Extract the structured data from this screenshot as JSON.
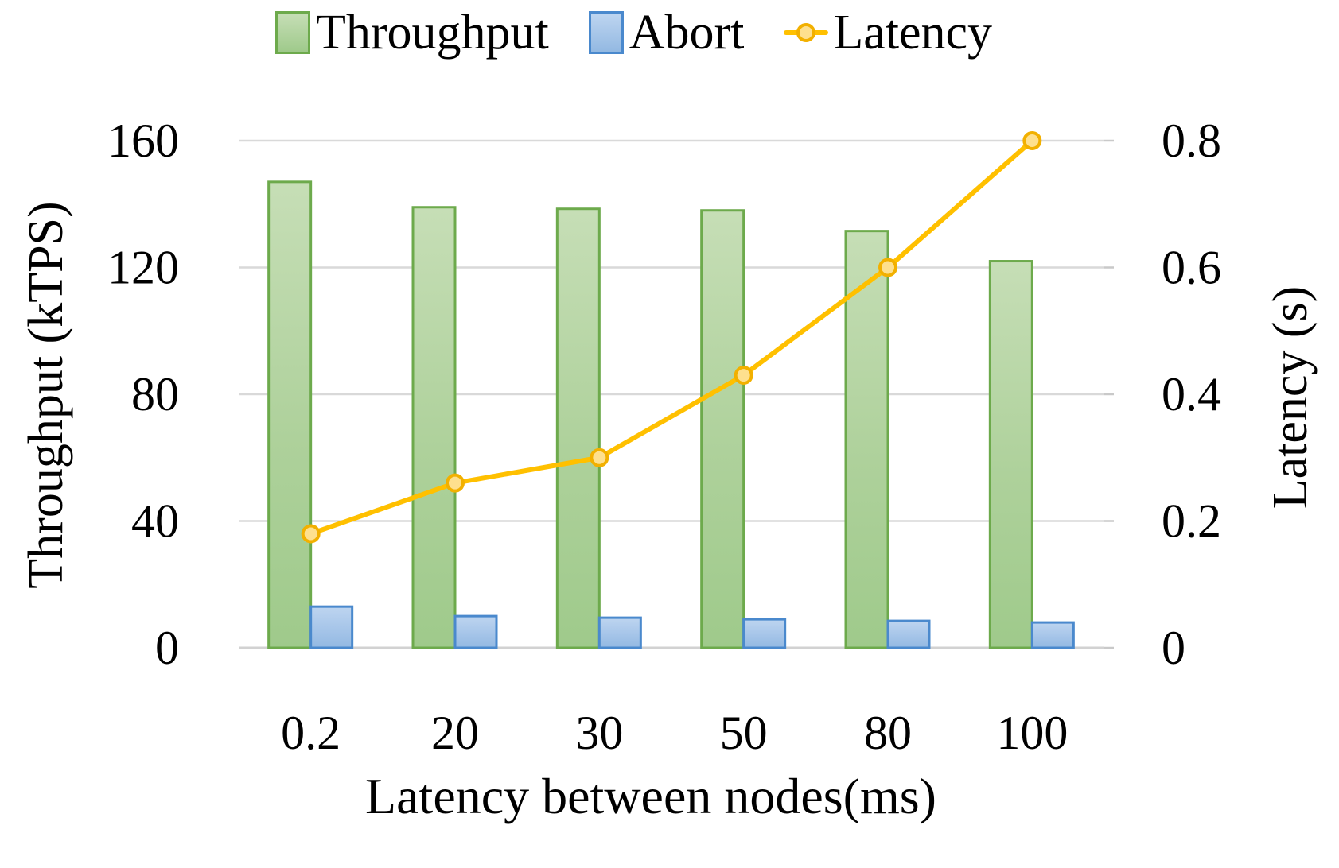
{
  "chart_data": {
    "type": "combo",
    "categories": [
      "0.2",
      "20",
      "30",
      "50",
      "80",
      "100"
    ],
    "series": [
      {
        "name": "Throughput",
        "type": "bar",
        "axis": "left",
        "values": [
          147,
          139,
          138.5,
          138,
          131.5,
          122
        ],
        "fill_top": "#c6deb6",
        "fill_mid": "#aed19b",
        "fill_bottom": "#9fca8b",
        "border": "#6daa4c"
      },
      {
        "name": "Abort",
        "type": "bar",
        "axis": "left",
        "values": [
          13,
          10,
          9.5,
          9,
          8.5,
          8
        ],
        "fill_top": "#bed5f0",
        "fill_mid": "#a6c5e9",
        "fill_bottom": "#93b9e2",
        "border": "#4a89cd"
      },
      {
        "name": "Latency",
        "type": "line",
        "axis": "right",
        "values": [
          0.18,
          0.26,
          0.3,
          0.43,
          0.6,
          0.8
        ],
        "color": "#ffc000",
        "marker_fill": "#fee08e",
        "marker_border": "#f2b000"
      }
    ],
    "axes": {
      "left": {
        "label": "Throughput (kTPS)",
        "ticks": [
          0,
          40,
          80,
          120,
          160
        ],
        "max": 160
      },
      "right": {
        "label": "Latency (s)",
        "tick_labels": [
          "0",
          "0.2",
          "0.4",
          "0.6",
          "0.8"
        ],
        "max": 0.8
      },
      "x": {
        "label": "Latency between nodes(ms)"
      }
    },
    "legend_position": "top",
    "grid": true,
    "gridline_color": "#d9d9d9",
    "axis_line_color": "#d2d2d2",
    "tick_mark_color": "#c9c9c9",
    "text_color": "#000000"
  }
}
